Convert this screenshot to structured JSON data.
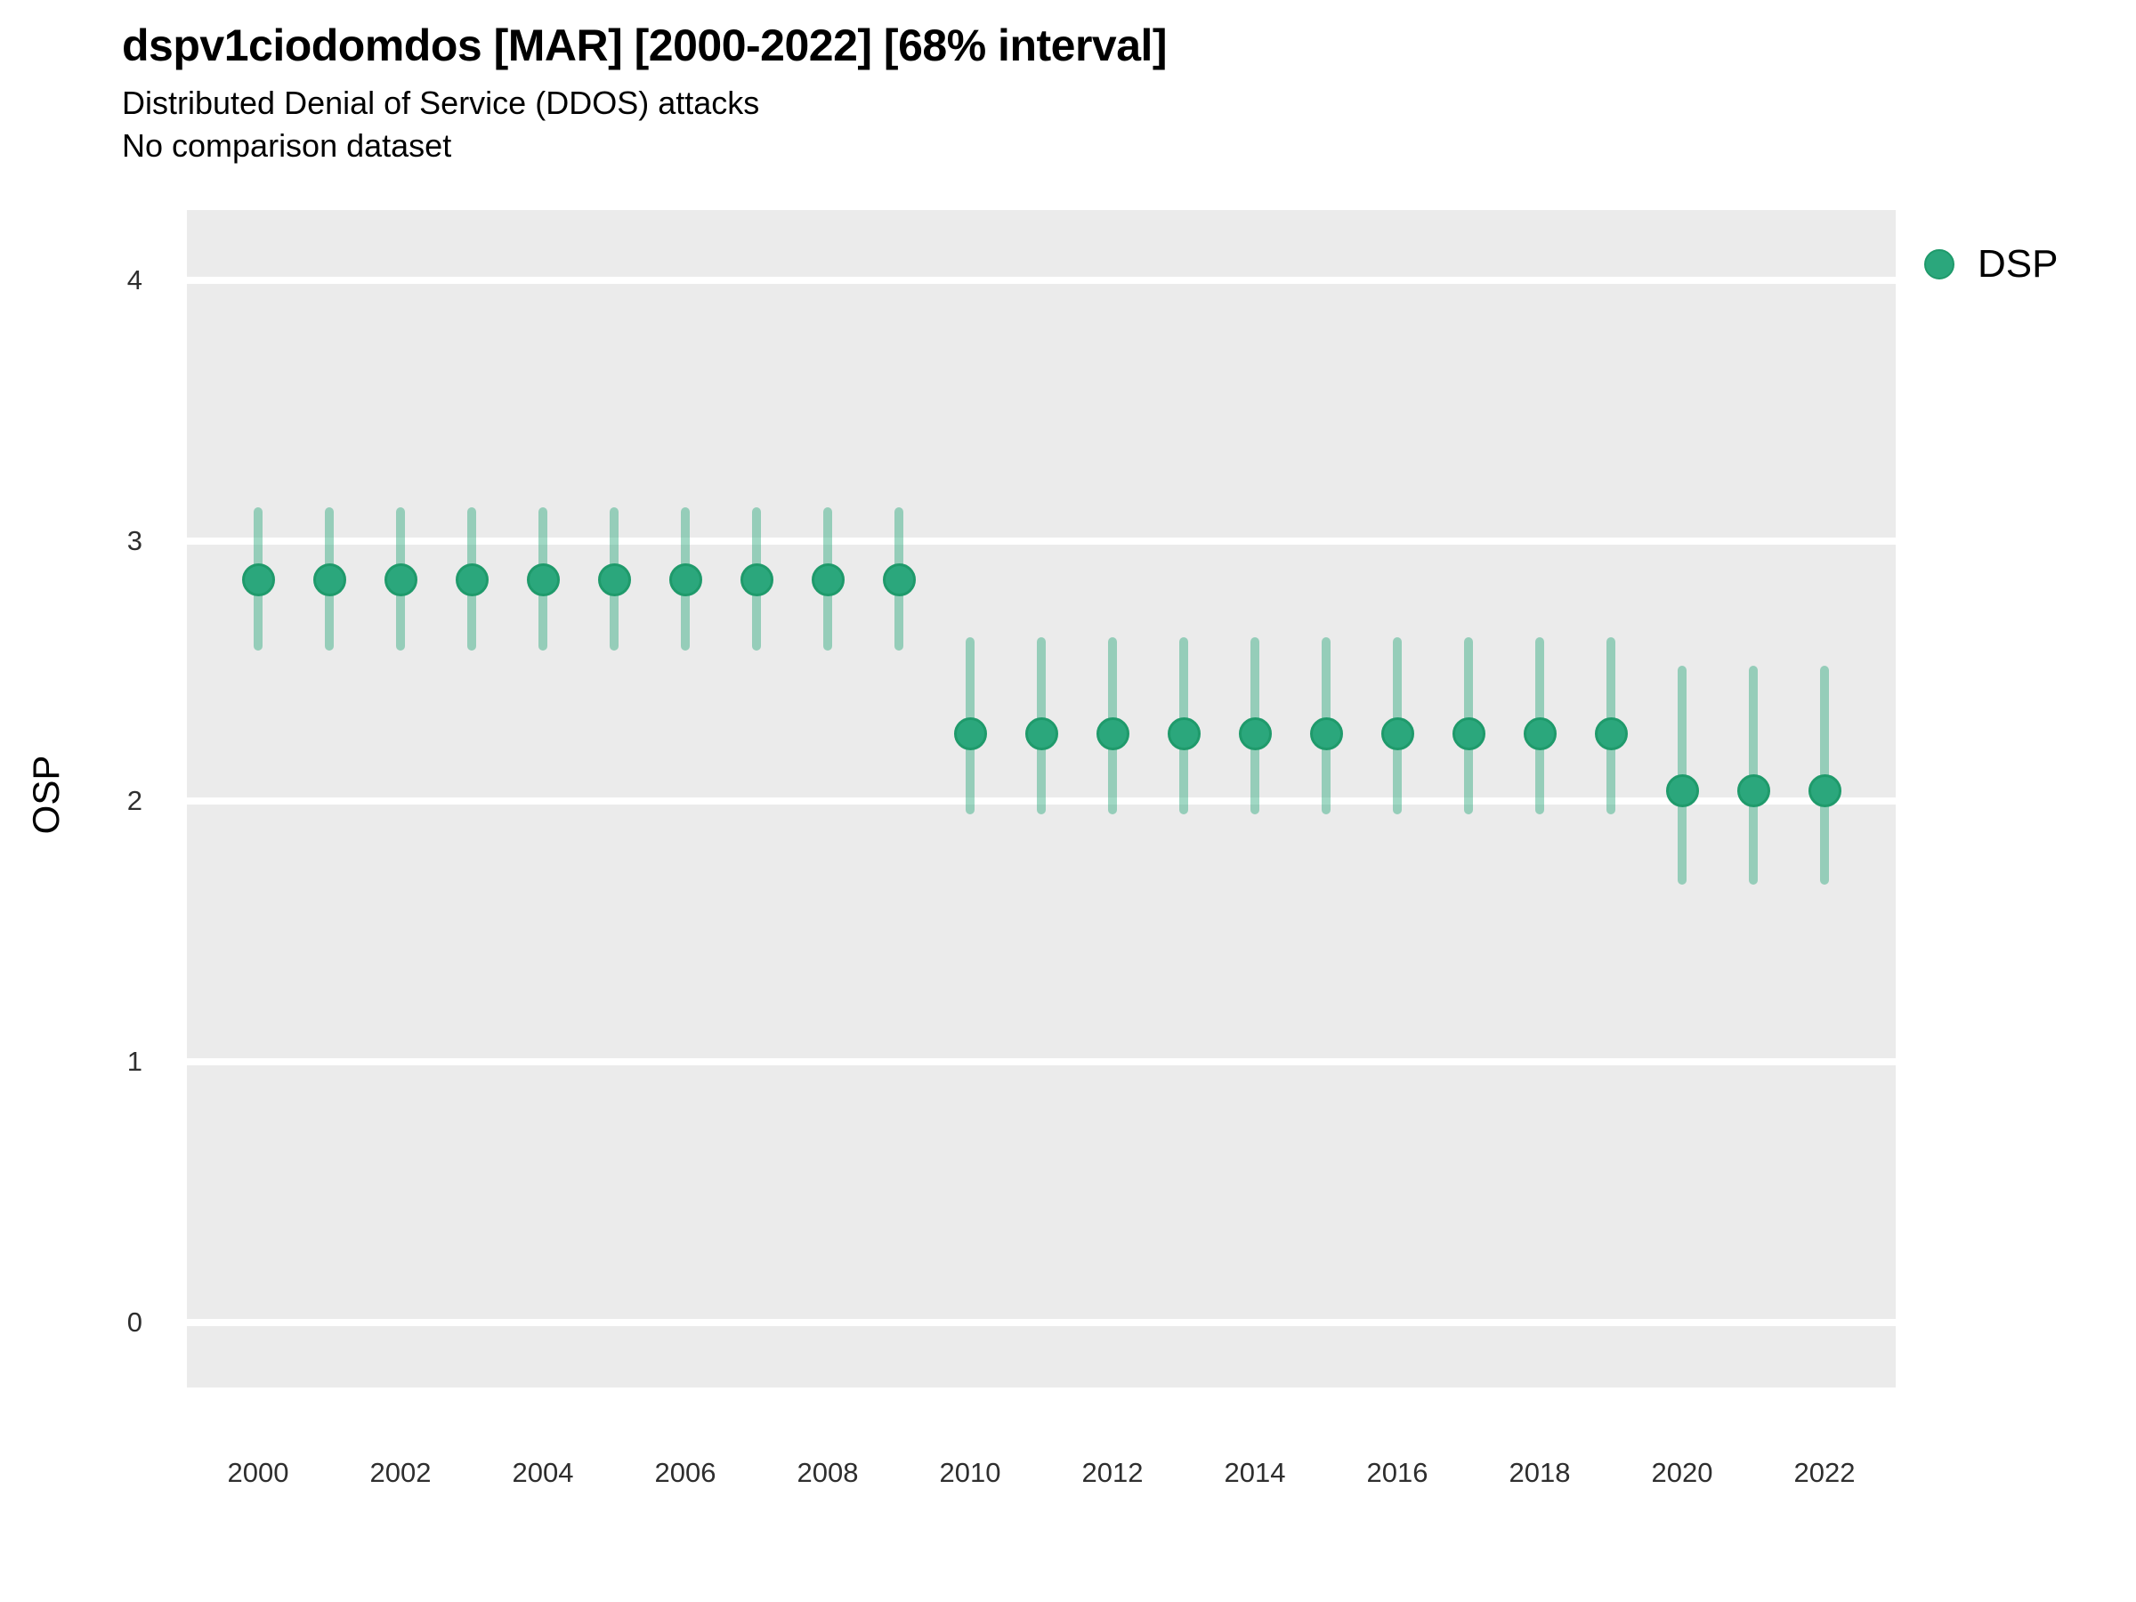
{
  "header": {
    "title": "dspv1ciodomdos [MAR] [2000-2022] [68% interval]",
    "subtitle1": "Distributed Denial of Service (DDOS) attacks",
    "subtitle2": "No comparison dataset"
  },
  "legend": {
    "label": "DSP",
    "position": "right-top"
  },
  "colors": {
    "point_fill": "#2ba77c",
    "point_stroke": "#1f9a6b",
    "interval_line": "rgba(44,168,125,0.45)",
    "panel_bg": "#ebebeb",
    "gridline": "#ffffff",
    "tick_text": "#2e2e2e",
    "text": "#000000"
  },
  "chart_data": {
    "type": "scatter",
    "title": "dspv1ciodomdos [MAR] [2000-2022] [68% interval]",
    "subtitle": [
      "Distributed Denial of Service (DDOS) attacks",
      "No comparison dataset"
    ],
    "xlabel": "",
    "ylabel": "OSP",
    "interval": "68%",
    "xlim": [
      1999,
      2023
    ],
    "ylim": [
      -0.25,
      4.27
    ],
    "x_ticks": [
      2000,
      2002,
      2004,
      2006,
      2008,
      2010,
      2012,
      2014,
      2016,
      2018,
      2020,
      2022
    ],
    "y_ticks": [
      0,
      1,
      2,
      3,
      4
    ],
    "grid": "white major horizontal gridlines on gray panel",
    "legend_position": "right-top",
    "series": [
      {
        "name": "DSP",
        "points": [
          {
            "x": 2000,
            "y": 2.85,
            "lo": 2.58,
            "hi": 3.13
          },
          {
            "x": 2001,
            "y": 2.85,
            "lo": 2.58,
            "hi": 3.13
          },
          {
            "x": 2002,
            "y": 2.85,
            "lo": 2.58,
            "hi": 3.13
          },
          {
            "x": 2003,
            "y": 2.85,
            "lo": 2.58,
            "hi": 3.13
          },
          {
            "x": 2004,
            "y": 2.85,
            "lo": 2.58,
            "hi": 3.13
          },
          {
            "x": 2005,
            "y": 2.85,
            "lo": 2.58,
            "hi": 3.13
          },
          {
            "x": 2006,
            "y": 2.85,
            "lo": 2.58,
            "hi": 3.13
          },
          {
            "x": 2007,
            "y": 2.85,
            "lo": 2.58,
            "hi": 3.13
          },
          {
            "x": 2008,
            "y": 2.85,
            "lo": 2.58,
            "hi": 3.13
          },
          {
            "x": 2009,
            "y": 2.85,
            "lo": 2.58,
            "hi": 3.13
          },
          {
            "x": 2010,
            "y": 2.26,
            "lo": 1.95,
            "hi": 2.63
          },
          {
            "x": 2011,
            "y": 2.26,
            "lo": 1.95,
            "hi": 2.63
          },
          {
            "x": 2012,
            "y": 2.26,
            "lo": 1.95,
            "hi": 2.63
          },
          {
            "x": 2013,
            "y": 2.26,
            "lo": 1.95,
            "hi": 2.63
          },
          {
            "x": 2014,
            "y": 2.26,
            "lo": 1.95,
            "hi": 2.63
          },
          {
            "x": 2015,
            "y": 2.26,
            "lo": 1.95,
            "hi": 2.63
          },
          {
            "x": 2016,
            "y": 2.26,
            "lo": 1.95,
            "hi": 2.63
          },
          {
            "x": 2017,
            "y": 2.26,
            "lo": 1.95,
            "hi": 2.63
          },
          {
            "x": 2018,
            "y": 2.26,
            "lo": 1.95,
            "hi": 2.63
          },
          {
            "x": 2019,
            "y": 2.26,
            "lo": 1.95,
            "hi": 2.63
          },
          {
            "x": 2020,
            "y": 2.04,
            "lo": 1.68,
            "hi": 2.52
          },
          {
            "x": 2021,
            "y": 2.04,
            "lo": 1.68,
            "hi": 2.52
          },
          {
            "x": 2022,
            "y": 2.04,
            "lo": 1.68,
            "hi": 2.52
          }
        ]
      }
    ]
  }
}
